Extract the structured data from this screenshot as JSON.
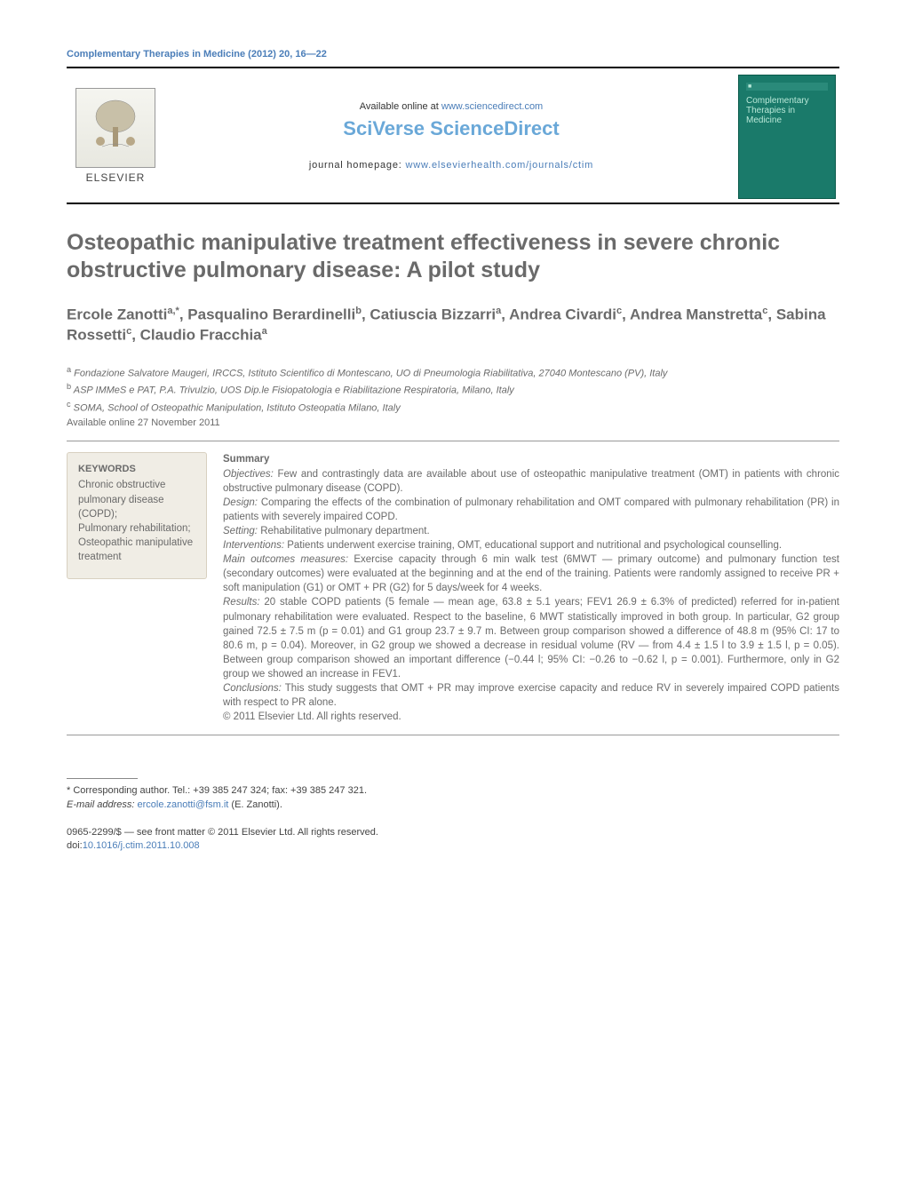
{
  "runningHeader": "Complementary Therapies in Medicine (2012) 20, 16—22",
  "banner": {
    "elsevierLabel": "ELSEVIER",
    "availableText": "Available online at ",
    "availableUrl": "www.sciencedirect.com",
    "sciverse": "SciVerse ScienceDirect",
    "journalHomePrefix": "journal homepage: ",
    "journalHomeUrl": "www.elsevierhealth.com/journals/ctim",
    "coverTitle": "Complementary Therapies in Medicine"
  },
  "title": "Osteopathic manipulative treatment effectiveness in severe chronic obstructive pulmonary disease: A pilot study",
  "authorsHtmlParts": [
    {
      "name": "Ercole Zanotti",
      "sup": "a,*"
    },
    {
      "name": "Pasqualino Berardinelli",
      "sup": "b"
    },
    {
      "name": "Catiuscia Bizzarri",
      "sup": "a"
    },
    {
      "name": "Andrea Civardi",
      "sup": "c"
    },
    {
      "name": "Andrea Manstretta",
      "sup": "c"
    },
    {
      "name": "Sabina Rossetti",
      "sup": "c"
    },
    {
      "name": "Claudio Fracchia",
      "sup": "a"
    }
  ],
  "affiliations": [
    {
      "sup": "a",
      "text": "Fondazione Salvatore Maugeri, IRCCS, Istituto Scientifico di Montescano, UO di Pneumologia Riabilitativa, 27040 Montescano (PV), Italy"
    },
    {
      "sup": "b",
      "text": "ASP IMMeS e PAT, P.A. Trivulzio, UOS Dip.le Fisiopatologia e Riabilitazione Respiratoria, Milano, Italy"
    },
    {
      "sup": "c",
      "text": "SOMA, School of Osteopathic Manipulation, Istituto Osteopatia Milano, Italy"
    }
  ],
  "availableDate": "Available online 27 November 2011",
  "keywords": {
    "heading": "KEYWORDS",
    "body": "Chronic obstructive pulmonary disease (COPD);\nPulmonary rehabilitation;\nOsteopathic manipulative treatment"
  },
  "summary": {
    "heading": "Summary",
    "items": [
      {
        "label": "Objectives:",
        "text": " Few and contrastingly data are available about use of osteopathic manipulative treatment (OMT) in patients with chronic obstructive pulmonary disease (COPD)."
      },
      {
        "label": "Design:",
        "text": " Comparing the effects of the combination of pulmonary rehabilitation and OMT compared with pulmonary rehabilitation (PR) in patients with severely impaired COPD."
      },
      {
        "label": "Setting:",
        "text": " Rehabilitative pulmonary department."
      },
      {
        "label": "Interventions:",
        "text": " Patients underwent exercise training, OMT, educational support and nutritional and psychological counselling."
      },
      {
        "label": "Main outcomes measures:",
        "text": " Exercise capacity through 6 min walk test (6MWT — primary outcome) and pulmonary function test (secondary outcomes) were evaluated at the beginning and at the end of the training. Patients were randomly assigned to receive PR + soft manipulation (G1) or OMT + PR (G2) for 5 days/week for 4 weeks."
      },
      {
        "label": "Results:",
        "text": " 20 stable COPD patients (5 female — mean age, 63.8 ± 5.1 years; FEV1 26.9 ± 6.3% of predicted) referred for in-patient pulmonary rehabilitation were evaluated. Respect to the baseline, 6 MWT statistically improved in both group. In particular, G2 group gained 72.5 ± 7.5 m (p = 0.01) and G1 group 23.7 ± 9.7 m. Between group comparison showed a difference of 48.8 m (95% CI: 17 to 80.6 m, p = 0.04). Moreover, in G2 group we showed a decrease in residual volume (RV — from 4.4 ± 1.5 l to 3.9 ± 1.5 l, p = 0.05). Between group comparison showed an important difference (−0.44 l; 95% CI: −0.26 to −0.62 l, p = 0.001). Furthermore, only in G2 group we showed an increase in FEV1."
      },
      {
        "label": "Conclusions:",
        "text": " This study suggests that OMT + PR may improve exercise capacity and reduce RV in severely impaired COPD patients with respect to PR alone."
      }
    ],
    "copyright": "© 2011 Elsevier Ltd. All rights reserved."
  },
  "footnotes": {
    "corresponding": "* Corresponding author. Tel.: +39 385 247 324; fax: +39 385 247 321.",
    "emailLabel": "E-mail address: ",
    "email": "ercole.zanotti@fsm.it",
    "emailSuffix": " (E. Zanotti)."
  },
  "bottom": {
    "issn": "0965-2299/$ — see front matter © 2011 Elsevier Ltd. All rights reserved.",
    "doiLabel": "doi:",
    "doi": "10.1016/j.ctim.2011.10.008"
  },
  "colors": {
    "link": "#4a7db8",
    "grayText": "#6a6a6a",
    "sciverse": "#6aa8d8",
    "keywordsBg": "#f0ede5",
    "coverBg": "#1a7a6a"
  }
}
